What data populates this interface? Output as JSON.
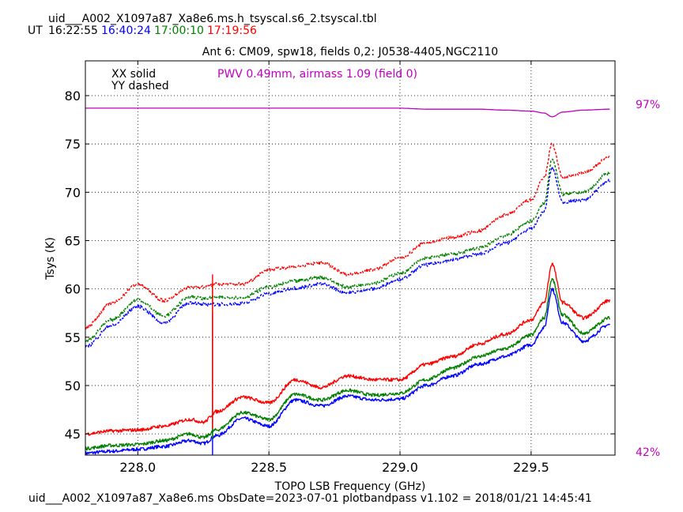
{
  "header": {
    "filename": "uid___A002_X1097a87_Xa8e6.ms.h_tsyscal.s6_2.tsyscal.tbl",
    "ut_label": "UT",
    "times": [
      {
        "text": "16:22:55",
        "color": "#000000"
      },
      {
        "text": "16:40:24",
        "color": "#0000ff"
      },
      {
        "text": "17:00:10",
        "color": "#008000"
      },
      {
        "text": "17:19:56",
        "color": "#ff0000"
      }
    ]
  },
  "footer": {
    "text": "uid___A002_X1097a87_Xa8e6.ms  ObsDate=2023-07-01   plotbandpass v1.102 = 2018/01/21 14:45:41"
  },
  "chart_data": {
    "type": "line",
    "title": "Ant 6: CM09,  spw18,  fields 0,2: J0538-4405,NGC2110",
    "xlabel": "TOPO LSB Frequency (GHz)",
    "ylabel": "Tsys (K)",
    "xlim": [
      227.8,
      229.82
    ],
    "ylim": [
      42.8,
      83.6
    ],
    "xticks": [
      228.0,
      228.5,
      229.0,
      229.5
    ],
    "xtick_labels": [
      "228.0",
      "228.5",
      "229.0",
      "229.5"
    ],
    "yticks": [
      45,
      50,
      55,
      60,
      65,
      70,
      75,
      80
    ],
    "ytick_labels": [
      "45",
      "50",
      "55",
      "60",
      "65",
      "70",
      "75",
      "80"
    ],
    "grid": true,
    "legend": {
      "solid": "XX solid",
      "dashed": "YY dashed",
      "placement": "top-left"
    },
    "annotation": {
      "text": "PWV 0.49mm, airmass 1.09 (field 0)",
      "color": "#c000c0"
    },
    "atm_scale": {
      "top": "97%",
      "bottom": "42%",
      "color": "#c000c0"
    },
    "x": [
      227.8,
      227.9,
      228.0,
      228.1,
      228.2,
      228.25,
      228.3,
      228.4,
      228.5,
      228.6,
      228.7,
      228.8,
      228.9,
      229.0,
      229.1,
      229.2,
      229.3,
      229.4,
      229.5,
      229.55,
      229.58,
      229.62,
      229.7,
      229.8
    ],
    "series": [
      {
        "pol": "XX",
        "time": "16:40:24",
        "color": "#0000ff",
        "style": "solid",
        "values": [
          43.0,
          43.2,
          43.4,
          43.7,
          44.3,
          44.0,
          44.8,
          46.6,
          45.8,
          48.5,
          47.9,
          48.9,
          48.5,
          48.6,
          50.0,
          51.0,
          52.2,
          53.0,
          54.2,
          56.0,
          60.0,
          56.5,
          54.6,
          56.3
        ]
      },
      {
        "pol": "XX",
        "time": "17:00:10",
        "color": "#008000",
        "style": "solid",
        "values": [
          43.5,
          43.8,
          43.9,
          44.3,
          45.0,
          44.6,
          45.4,
          47.2,
          46.5,
          49.1,
          48.5,
          49.5,
          49.0,
          49.2,
          50.6,
          51.8,
          53.0,
          53.8,
          55.2,
          57.0,
          61.0,
          57.3,
          55.4,
          57.0
        ]
      },
      {
        "pol": "XX",
        "time": "17:19:56",
        "color": "#ff0000",
        "style": "solid",
        "values": [
          45.0,
          45.3,
          45.4,
          45.8,
          46.5,
          46.2,
          47.3,
          48.8,
          48.2,
          50.6,
          49.8,
          51.0,
          50.6,
          50.6,
          52.2,
          53.0,
          54.3,
          55.3,
          56.8,
          58.6,
          62.6,
          58.6,
          57.0,
          58.8
        ]
      },
      {
        "pol": "YY",
        "time": "16:40:24",
        "color": "#0000ff",
        "style": "dashed",
        "values": [
          54.0,
          56.2,
          58.2,
          56.5,
          58.6,
          58.4,
          58.4,
          58.5,
          59.5,
          60.1,
          60.5,
          59.6,
          60.0,
          61.0,
          62.5,
          63.0,
          63.6,
          64.7,
          66.2,
          68.0,
          72.5,
          69.0,
          69.2,
          71.2
        ]
      },
      {
        "pol": "YY",
        "time": "17:00:10",
        "color": "#008000",
        "style": "dashed",
        "values": [
          54.6,
          56.8,
          58.9,
          57.2,
          59.2,
          59.0,
          59.1,
          59.1,
          60.2,
          60.8,
          61.2,
          60.2,
          60.6,
          61.6,
          63.2,
          63.6,
          64.2,
          65.5,
          67.0,
          68.8,
          73.5,
          69.8,
          70.0,
          72.0
        ]
      },
      {
        "pol": "YY",
        "time": "17:19:56",
        "color": "#ff0000",
        "style": "dashed",
        "values": [
          56.0,
          58.5,
          60.5,
          58.8,
          60.2,
          60.2,
          60.5,
          60.5,
          62.0,
          62.3,
          62.7,
          61.5,
          62.0,
          63.2,
          64.8,
          65.3,
          66.0,
          67.6,
          69.2,
          71.5,
          75.0,
          71.5,
          72.0,
          73.6
        ]
      },
      {
        "name": "atmospheric transmission",
        "color": "#c000c0",
        "style": "solid",
        "values": [
          78.7,
          78.7,
          78.7,
          78.7,
          78.7,
          78.7,
          78.7,
          78.7,
          78.7,
          78.7,
          78.7,
          78.7,
          78.7,
          78.7,
          78.6,
          78.6,
          78.6,
          78.5,
          78.4,
          78.2,
          77.8,
          78.3,
          78.5,
          78.6
        ]
      }
    ],
    "spikes": [
      {
        "x": 228.285,
        "color": "#0000ff",
        "top": 57.5,
        "bottom": 42.8
      },
      {
        "x": 228.285,
        "color": "#008000",
        "top": 60.5,
        "bottom": 44.5
      },
      {
        "x": 228.285,
        "color": "#ff0000",
        "top": 61.5,
        "bottom": 45.5
      }
    ]
  }
}
